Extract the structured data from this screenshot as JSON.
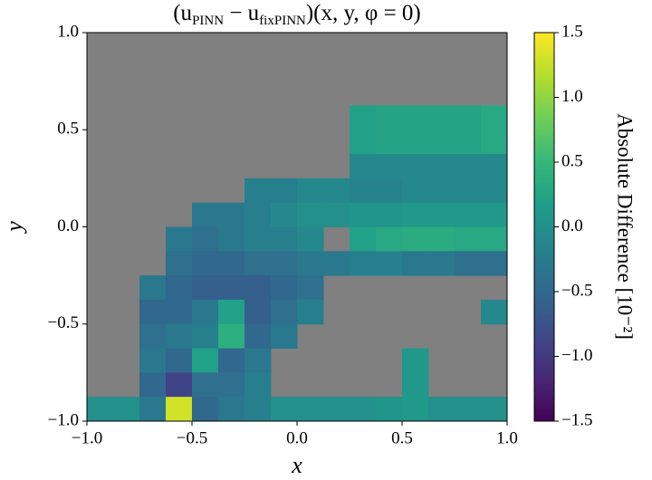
{
  "chart_data": {
    "type": "heatmap",
    "title": [
      "(u",
      "PINN",
      " − u",
      "fixPINN",
      ")(x, y, φ = 0)"
    ],
    "xlabel": "x",
    "ylabel": "y",
    "colorbar_label": "Absolute Difference [10⁻²]",
    "colormap": "viridis",
    "mask_color": "#808080",
    "xlim": [
      -1,
      1
    ],
    "ylim": [
      -1,
      1
    ],
    "zlim": [
      -1.5,
      1.5
    ],
    "xticks": [
      {
        "value": -1,
        "label": "−1.0"
      },
      {
        "value": -0.5,
        "label": "−0.5"
      },
      {
        "value": 0,
        "label": "0.0"
      },
      0.5,
      {
        "value": 1,
        "label": "1.0"
      }
    ],
    "yticks": [
      {
        "value": -1,
        "label": "−1.0"
      },
      {
        "value": -0.5,
        "label": "−0.5"
      },
      {
        "value": 0,
        "label": "0.0"
      },
      0.5,
      {
        "value": 1,
        "label": "1.0"
      }
    ],
    "zticks": [
      {
        "value": -1.5,
        "label": "−1.5"
      },
      {
        "value": -1,
        "label": "−1.0"
      },
      {
        "value": -0.5,
        "label": "−0.5"
      },
      {
        "value": 0,
        "label": "0.0"
      },
      0.5,
      {
        "value": 1,
        "label": "1.0"
      },
      1.5
    ],
    "z": [
      [
        null,
        null,
        null,
        null,
        null,
        null,
        null,
        null,
        null,
        null,
        null,
        null,
        null,
        null,
        null,
        null
      ],
      [
        null,
        null,
        null,
        null,
        null,
        null,
        null,
        null,
        null,
        null,
        null,
        null,
        null,
        null,
        null,
        null
      ],
      [
        null,
        null,
        null,
        null,
        null,
        null,
        null,
        null,
        null,
        null,
        null,
        null,
        null,
        null,
        null,
        null
      ],
      [
        null,
        null,
        null,
        null,
        null,
        null,
        null,
        null,
        null,
        null,
        0.2,
        0.25,
        0.25,
        0.25,
        0.25,
        0.3
      ],
      [
        null,
        null,
        null,
        null,
        null,
        null,
        null,
        null,
        null,
        null,
        0.2,
        0.25,
        0.25,
        0.25,
        0.25,
        0.3
      ],
      [
        null,
        null,
        null,
        null,
        null,
        null,
        null,
        null,
        null,
        null,
        -0.1,
        -0.1,
        -0.1,
        -0.1,
        -0.1,
        -0.1
      ],
      [
        null,
        null,
        null,
        null,
        null,
        null,
        -0.2,
        -0.2,
        -0.1,
        -0.1,
        -0.15,
        -0.15,
        -0.1,
        -0.1,
        -0.1,
        -0.1
      ],
      [
        null,
        null,
        null,
        null,
        -0.3,
        -0.3,
        -0.2,
        -0.1,
        0,
        0,
        0.05,
        0.05,
        0.1,
        0.1,
        0.1,
        0.1
      ],
      [
        null,
        null,
        null,
        -0.3,
        -0.4,
        -0.3,
        -0.2,
        -0.2,
        -0.1,
        null,
        0.2,
        0.3,
        0.35,
        0.35,
        0.3,
        0.3
      ],
      [
        null,
        null,
        null,
        -0.4,
        -0.5,
        -0.5,
        -0.4,
        -0.4,
        -0.3,
        -0.3,
        -0.2,
        -0.2,
        -0.3,
        -0.3,
        -0.4,
        -0.4
      ],
      [
        null,
        null,
        -0.3,
        -0.5,
        -0.6,
        -0.6,
        -0.6,
        -0.5,
        -0.4,
        null,
        null,
        null,
        null,
        null,
        null,
        null
      ],
      [
        null,
        null,
        -0.5,
        -0.5,
        -0.3,
        0.2,
        -0.6,
        -0.4,
        -0.2,
        null,
        null,
        null,
        null,
        null,
        null,
        -0.1
      ],
      [
        null,
        null,
        -0.4,
        -0.3,
        -0.2,
        0.4,
        -0.5,
        -0.3,
        null,
        null,
        null,
        null,
        null,
        null,
        null,
        null
      ],
      [
        null,
        null,
        -0.3,
        -0.5,
        0.2,
        -0.5,
        -0.3,
        null,
        null,
        null,
        null,
        null,
        0.1,
        null,
        null,
        null
      ],
      [
        null,
        null,
        -0.5,
        -0.9,
        -0.4,
        -0.4,
        -0.2,
        null,
        null,
        null,
        null,
        null,
        0.1,
        null,
        null,
        null
      ],
      [
        0,
        0,
        -0.3,
        1.3,
        -0.5,
        -0.3,
        -0.2,
        0,
        0,
        0,
        0,
        0.05,
        0.1,
        0,
        0,
        0
      ]
    ]
  }
}
